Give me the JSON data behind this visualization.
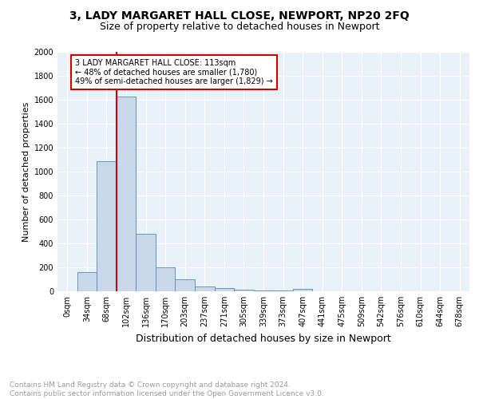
{
  "title1": "3, LADY MARGARET HALL CLOSE, NEWPORT, NP20 2FQ",
  "title2": "Size of property relative to detached houses in Newport",
  "xlabel": "Distribution of detached houses by size in Newport",
  "ylabel": "Number of detached properties",
  "footnote": "Contains HM Land Registry data © Crown copyright and database right 2024.\nContains public sector information licensed under the Open Government Licence v3.0.",
  "bar_labels": [
    "0sqm",
    "34sqm",
    "68sqm",
    "102sqm",
    "136sqm",
    "170sqm",
    "203sqm",
    "237sqm",
    "271sqm",
    "305sqm",
    "339sqm",
    "373sqm",
    "407sqm",
    "441sqm",
    "475sqm",
    "509sqm",
    "542sqm",
    "576sqm",
    "610sqm",
    "644sqm",
    "678sqm"
  ],
  "bar_values": [
    0,
    163,
    1090,
    1630,
    480,
    200,
    100,
    40,
    25,
    15,
    10,
    10,
    20,
    0,
    0,
    0,
    0,
    0,
    0,
    0,
    0
  ],
  "bar_color": "#c8d8e8",
  "bar_edge_color": "#5588bb",
  "vline_color": "#cc0000",
  "vline_x_index": 2.5,
  "annotation_text": "3 LADY MARGARET HALL CLOSE: 113sqm\n← 48% of detached houses are smaller (1,780)\n49% of semi-detached houses are larger (1,829) →",
  "annotation_box_color": "#ffffff",
  "annotation_box_edge": "#cc0000",
  "ylim": [
    0,
    2000
  ],
  "yticks": [
    0,
    200,
    400,
    600,
    800,
    1000,
    1200,
    1400,
    1600,
    1800,
    2000
  ],
  "background_color": "#e8f0f8",
  "grid_color": "#ffffff",
  "title1_fontsize": 10,
  "title2_fontsize": 9,
  "xlabel_fontsize": 9,
  "ylabel_fontsize": 8,
  "footnote_fontsize": 6.5,
  "tick_fontsize": 7
}
